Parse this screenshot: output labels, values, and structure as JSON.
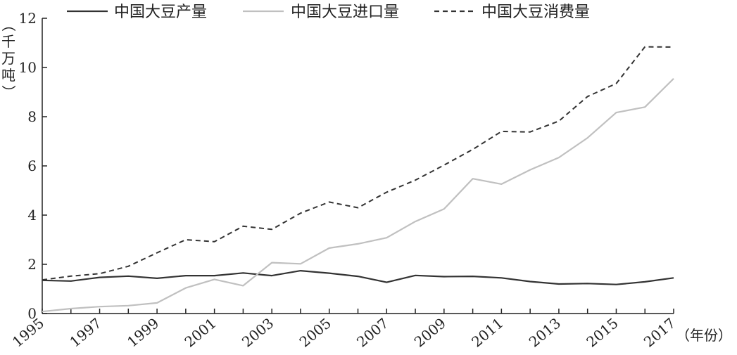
{
  "chart_data": {
    "type": "line",
    "title": "",
    "xlabel": "（年份）",
    "ylabel": "（千万吨）",
    "xlim": [
      1995,
      2017
    ],
    "ylim": [
      0,
      12
    ],
    "x": [
      1995,
      1996,
      1997,
      1998,
      1999,
      2000,
      2001,
      2002,
      2003,
      2004,
      2005,
      2006,
      2007,
      2008,
      2009,
      2010,
      2011,
      2012,
      2013,
      2014,
      2015,
      2016,
      2017
    ],
    "x_tick_labels": [
      "1995",
      "1997",
      "1999",
      "2001",
      "2003",
      "2005",
      "2007",
      "2009",
      "2011",
      "2013",
      "2015",
      "2017"
    ],
    "y_ticks": [
      0,
      2,
      4,
      6,
      8,
      10,
      12
    ],
    "y_tick_labels": [
      "0",
      "2",
      "4",
      "6",
      "8",
      "10",
      "12"
    ],
    "legend_position": "top",
    "grid": false,
    "series": [
      {
        "name": "中国大豆产量",
        "style": "solid",
        "color": "#333333",
        "values": [
          1.35,
          1.32,
          1.47,
          1.52,
          1.43,
          1.54,
          1.54,
          1.65,
          1.54,
          1.74,
          1.64,
          1.51,
          1.27,
          1.55,
          1.5,
          1.51,
          1.45,
          1.3,
          1.2,
          1.22,
          1.18,
          1.29,
          1.45
        ]
      },
      {
        "name": "中国大豆进口量",
        "style": "solid",
        "color": "#c0c0c0",
        "values": [
          0.08,
          0.2,
          0.28,
          0.32,
          0.43,
          1.04,
          1.39,
          1.13,
          2.07,
          2.02,
          2.66,
          2.83,
          3.08,
          3.74,
          4.25,
          5.48,
          5.26,
          5.84,
          6.34,
          7.14,
          8.17,
          8.39,
          9.55
        ]
      },
      {
        "name": "中国大豆消费量",
        "style": "dashed",
        "color": "#333333",
        "values": [
          1.37,
          1.52,
          1.62,
          1.92,
          2.47,
          3.0,
          2.92,
          3.55,
          3.42,
          4.08,
          4.53,
          4.3,
          4.93,
          5.42,
          6.03,
          6.67,
          7.4,
          7.38,
          7.82,
          8.82,
          9.35,
          10.84,
          10.83
        ]
      }
    ]
  }
}
